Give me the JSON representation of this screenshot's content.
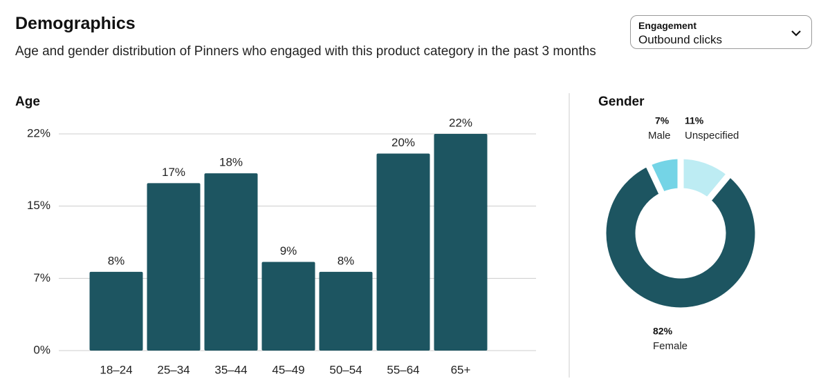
{
  "header": {
    "title": "Demographics",
    "subtitle": "Age and gender distribution of Pinners who engaged with this product category in the past 3 months"
  },
  "dropdown": {
    "label": "Engagement",
    "value": "Outbound clicks"
  },
  "chart_data": [
    {
      "type": "bar",
      "title": "Age",
      "categories": [
        "18–24",
        "25–34",
        "35–44",
        "45–49",
        "50–54",
        "55–64",
        "65+"
      ],
      "values": [
        8,
        17,
        18,
        9,
        8,
        20,
        22
      ],
      "value_labels": [
        "8%",
        "17%",
        "18%",
        "9%",
        "8%",
        "20%",
        "22%"
      ],
      "color": "#1d5561",
      "ylim": [
        0,
        22
      ],
      "yticks": [
        {
          "value": 0,
          "label": "0%"
        },
        {
          "value": 7.33,
          "label": "7%"
        },
        {
          "value": 14.67,
          "label": "15%"
        },
        {
          "value": 22,
          "label": "22%"
        }
      ],
      "grid": true
    },
    {
      "type": "pie",
      "title": "Gender",
      "categories": [
        "Male",
        "Unspecified",
        "Female"
      ],
      "values": [
        7,
        11,
        82
      ],
      "value_labels": [
        "7%",
        "11%",
        "82%"
      ],
      "colors": [
        "#74d4e6",
        "#bdecf3",
        "#1d5561"
      ]
    }
  ]
}
